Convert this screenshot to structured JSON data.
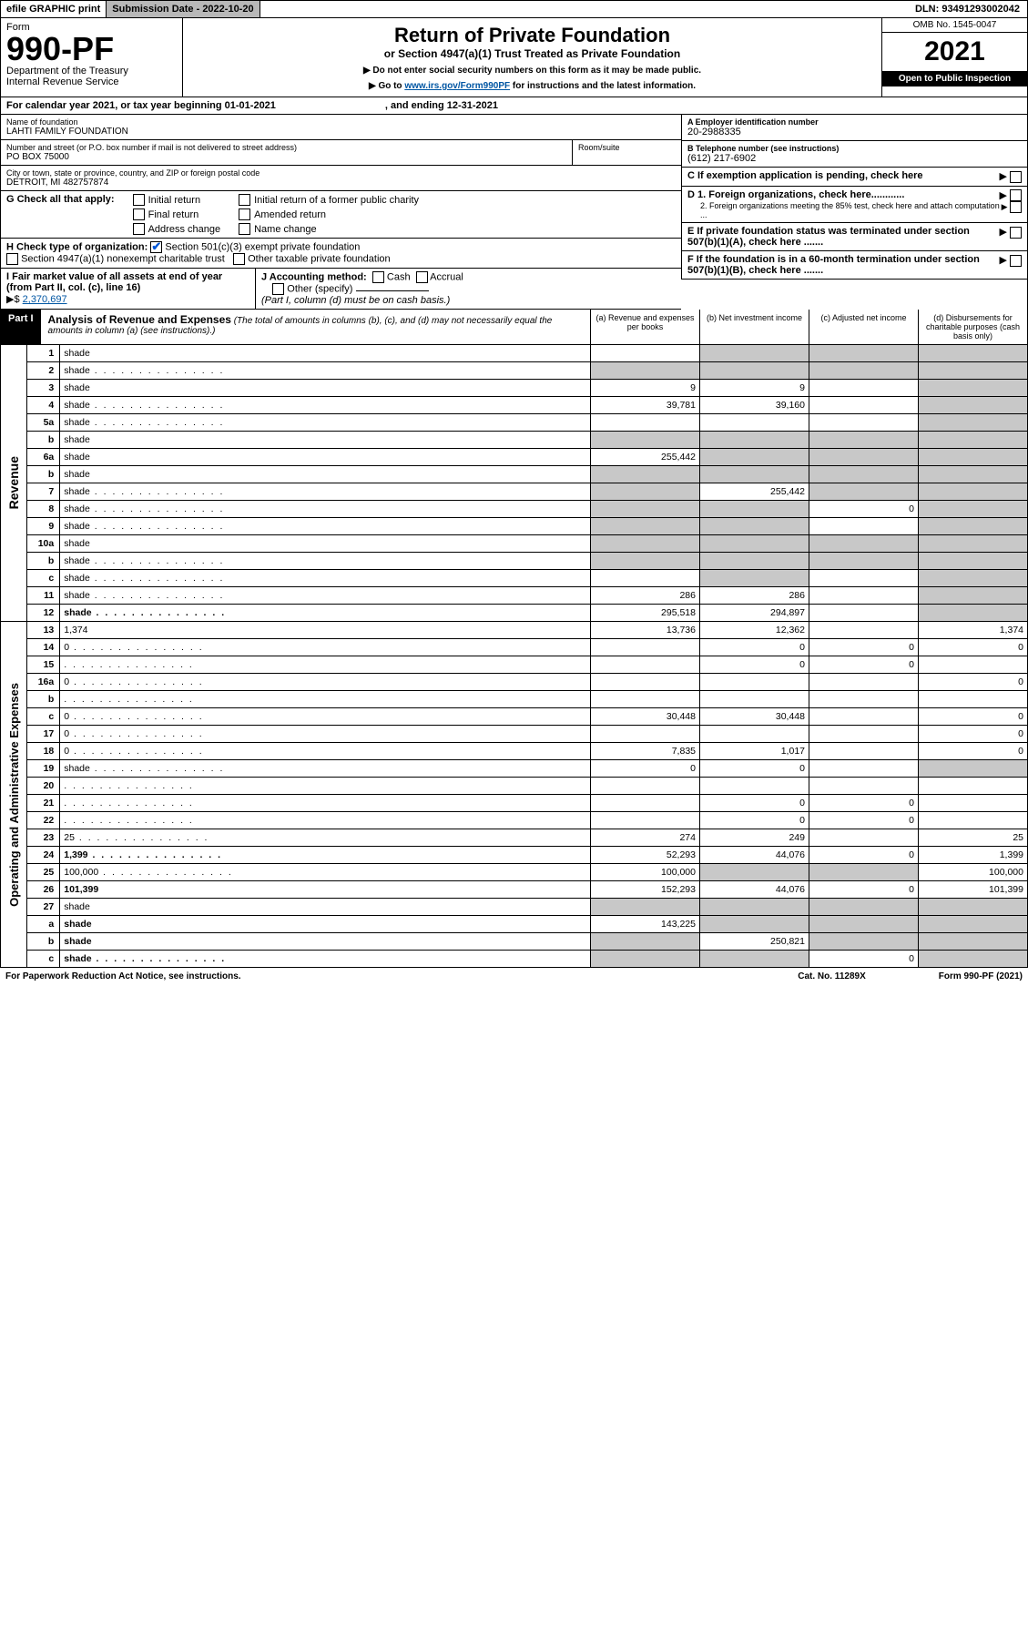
{
  "topbar": {
    "efile": "efile GRAPHIC print",
    "submission": "Submission Date - 2022-10-20",
    "dln": "DLN: 93491293002042"
  },
  "header": {
    "form_label": "Form",
    "form_number": "990-PF",
    "dept": "Department of the Treasury",
    "irs": "Internal Revenue Service",
    "title": "Return of Private Foundation",
    "subtitle": "or Section 4947(a)(1) Trust Treated as Private Foundation",
    "note1": "▶ Do not enter social security numbers on this form as it may be made public.",
    "note2_prefix": "▶ Go to ",
    "note2_link": "www.irs.gov/Form990PF",
    "note2_suffix": " for instructions and the latest information.",
    "omb": "OMB No. 1545-0047",
    "year": "2021",
    "inspect": "Open to Public Inspection"
  },
  "calendar": {
    "text": "For calendar year 2021, or tax year beginning 01-01-2021",
    "ending": ", and ending 12-31-2021"
  },
  "foundation": {
    "name_label": "Name of foundation",
    "name": "LAHTI FAMILY FOUNDATION",
    "addr_label": "Number and street (or P.O. box number if mail is not delivered to street address)",
    "addr": "PO BOX 75000",
    "room_label": "Room/suite",
    "city_label": "City or town, state or province, country, and ZIP or foreign postal code",
    "city": "DETROIT, MI  482757874"
  },
  "right_info": {
    "a_label": "A Employer identification number",
    "a_val": "20-2988335",
    "b_label": "B Telephone number (see instructions)",
    "b_val": "(612) 217-6902",
    "c_label": "C If exemption application is pending, check here",
    "d1": "D 1. Foreign organizations, check here............",
    "d2": "2. Foreign organizations meeting the 85% test, check here and attach computation ...",
    "e_label": "E  If private foundation status was terminated under section 507(b)(1)(A), check here .......",
    "f_label": "F  If the foundation is in a 60-month termination under section 507(b)(1)(B), check here ......."
  },
  "section_g": {
    "label": "G Check all that apply:",
    "opts": [
      "Initial return",
      "Final return",
      "Address change",
      "Initial return of a former public charity",
      "Amended return",
      "Name change"
    ]
  },
  "section_h": {
    "label": "H Check type of organization:",
    "opt1": "Section 501(c)(3) exempt private foundation",
    "opt2": "Section 4947(a)(1) nonexempt charitable trust",
    "opt3": "Other taxable private foundation"
  },
  "section_i": {
    "label": "I Fair market value of all assets at end of year (from Part II, col. (c), line 16)",
    "value": "2,370,697",
    "prefix": "▶$ "
  },
  "section_j": {
    "label": "J Accounting method:",
    "cash": "Cash",
    "accrual": "Accrual",
    "other": "Other (specify)",
    "note": "(Part I, column (d) must be on cash basis.)"
  },
  "part1": {
    "header": "Part I",
    "title": "Analysis of Revenue and Expenses",
    "title_note": "(The total of amounts in columns (b), (c), and (d) may not necessarily equal the amounts in column (a) (see instructions).)",
    "col_a": "(a) Revenue and expenses per books",
    "col_b": "(b) Net investment income",
    "col_c": "(c) Adjusted net income",
    "col_d": "(d) Disbursements for charitable purposes (cash basis only)"
  },
  "revenue_label": "Revenue",
  "expenses_label": "Operating and Administrative Expenses",
  "lines": [
    {
      "n": "1",
      "d": "shade",
      "a": "",
      "b": "shade",
      "c": "shade"
    },
    {
      "n": "2",
      "d": "shade",
      "dots": true,
      "a": "shade",
      "b": "shade",
      "c": "shade"
    },
    {
      "n": "3",
      "d": "shade",
      "a": "9",
      "b": "9",
      "c": ""
    },
    {
      "n": "4",
      "d": "shade",
      "dots": true,
      "a": "39,781",
      "b": "39,160",
      "c": ""
    },
    {
      "n": "5a",
      "d": "shade",
      "dots": true,
      "a": "",
      "b": "",
      "c": ""
    },
    {
      "n": "b",
      "d": "shade",
      "a": "shade",
      "b": "shade",
      "c": "shade"
    },
    {
      "n": "6a",
      "d": "shade",
      "a": "255,442",
      "b": "shade",
      "c": "shade"
    },
    {
      "n": "b",
      "d": "shade",
      "a": "shade",
      "b": "shade",
      "c": "shade"
    },
    {
      "n": "7",
      "d": "shade",
      "dots": true,
      "a": "shade",
      "b": "255,442",
      "c": "shade"
    },
    {
      "n": "8",
      "d": "shade",
      "dots": true,
      "a": "shade",
      "b": "shade",
      "c": "0"
    },
    {
      "n": "9",
      "d": "shade",
      "dots": true,
      "a": "shade",
      "b": "shade",
      "c": ""
    },
    {
      "n": "10a",
      "d": "shade",
      "a": "shade",
      "b": "shade",
      "c": "shade"
    },
    {
      "n": "b",
      "d": "shade",
      "dots": true,
      "a": "shade",
      "b": "shade",
      "c": "shade"
    },
    {
      "n": "c",
      "d": "shade",
      "dots": true,
      "a": "",
      "b": "shade",
      "c": ""
    },
    {
      "n": "11",
      "d": "shade",
      "dots": true,
      "a": "286",
      "b": "286",
      "c": ""
    },
    {
      "n": "12",
      "d": "shade",
      "dots": true,
      "bold": true,
      "a": "295,518",
      "b": "294,897",
      "c": ""
    }
  ],
  "exp_lines": [
    {
      "n": "13",
      "d": "1,374",
      "a": "13,736",
      "b": "12,362",
      "c": ""
    },
    {
      "n": "14",
      "d": "0",
      "dots": true,
      "a": "",
      "b": "0",
      "c": "0"
    },
    {
      "n": "15",
      "d": "",
      "dots": true,
      "a": "",
      "b": "0",
      "c": "0"
    },
    {
      "n": "16a",
      "d": "0",
      "dots": true,
      "a": "",
      "b": "",
      "c": ""
    },
    {
      "n": "b",
      "d": "",
      "dots": true,
      "a": "",
      "b": "",
      "c": ""
    },
    {
      "n": "c",
      "d": "0",
      "dots": true,
      "a": "30,448",
      "b": "30,448",
      "c": ""
    },
    {
      "n": "17",
      "d": "0",
      "dots": true,
      "a": "",
      "b": "",
      "c": ""
    },
    {
      "n": "18",
      "d": "0",
      "dots": true,
      "a": "7,835",
      "b": "1,017",
      "c": ""
    },
    {
      "n": "19",
      "d": "shade",
      "dots": true,
      "a": "0",
      "b": "0",
      "c": ""
    },
    {
      "n": "20",
      "d": "",
      "dots": true,
      "a": "",
      "b": "",
      "c": ""
    },
    {
      "n": "21",
      "d": "",
      "dots": true,
      "a": "",
      "b": "0",
      "c": "0"
    },
    {
      "n": "22",
      "d": "",
      "dots": true,
      "a": "",
      "b": "0",
      "c": "0"
    },
    {
      "n": "23",
      "d": "25",
      "dots": true,
      "a": "274",
      "b": "249",
      "c": ""
    },
    {
      "n": "24",
      "d": "1,399",
      "dots": true,
      "bold": true,
      "a": "52,293",
      "b": "44,076",
      "c": "0"
    },
    {
      "n": "25",
      "d": "100,000",
      "dots": true,
      "a": "100,000",
      "b": "shade",
      "c": "shade"
    },
    {
      "n": "26",
      "d": "101,399",
      "bold": true,
      "a": "152,293",
      "b": "44,076",
      "c": "0"
    },
    {
      "n": "27",
      "d": "shade",
      "a": "shade",
      "b": "shade",
      "c": "shade"
    },
    {
      "n": "a",
      "d": "shade",
      "bold": true,
      "a": "143,225",
      "b": "shade",
      "c": "shade"
    },
    {
      "n": "b",
      "d": "shade",
      "bold": true,
      "a": "shade",
      "b": "250,821",
      "c": "shade"
    },
    {
      "n": "c",
      "d": "shade",
      "dots": true,
      "bold": true,
      "a": "shade",
      "b": "shade",
      "c": "0"
    }
  ],
  "footer": {
    "left": "For Paperwork Reduction Act Notice, see instructions.",
    "mid": "Cat. No. 11289X",
    "right": "Form 990-PF (2021)"
  }
}
